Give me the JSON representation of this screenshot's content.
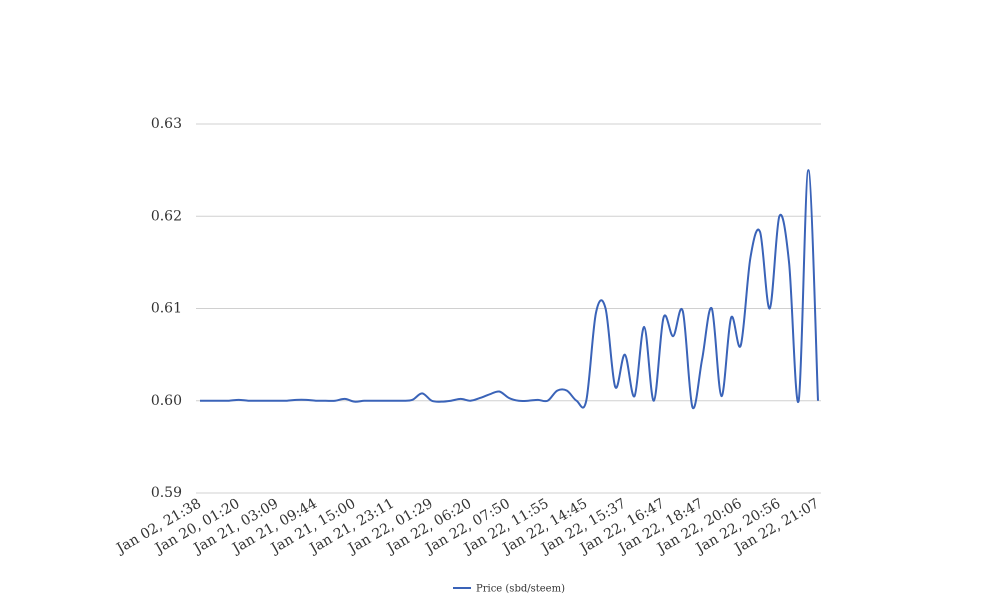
{
  "chart_data": {
    "type": "line",
    "categories": [
      "Jan 02, 21:38",
      null,
      null,
      null,
      "Jan 20, 01:20",
      null,
      null,
      null,
      "Jan 21, 03:09",
      null,
      null,
      null,
      "Jan 21, 09:44",
      null,
      null,
      null,
      "Jan 21, 15:00",
      null,
      null,
      null,
      "Jan 21, 23:11",
      null,
      null,
      null,
      "Jan 22, 01:29",
      null,
      null,
      null,
      "Jan 22, 06:20",
      null,
      null,
      null,
      "Jan 22, 07:50",
      null,
      null,
      null,
      "Jan 22, 11:55",
      null,
      null,
      null,
      "Jan 22, 14:45",
      null,
      null,
      null,
      "Jan 22, 15:37",
      null,
      null,
      null,
      "Jan 22, 16:47",
      null,
      null,
      null,
      "Jan 22, 18:47",
      null,
      null,
      null,
      "Jan 22, 20:06",
      null,
      null,
      null,
      "Jan 22, 20:56",
      null,
      null,
      null,
      "Jan 22, 21:07"
    ],
    "series": [
      {
        "name": "Price (sbd/steem)",
        "color": "#3a63b8",
        "values": [
          0.6,
          0.6,
          0.6,
          0.6,
          0.6001,
          0.6,
          0.6,
          0.6,
          0.6,
          0.6,
          0.6001,
          0.6001,
          0.6,
          0.6,
          0.6,
          0.6002,
          0.5999,
          0.6,
          0.6,
          0.6,
          0.6,
          0.6,
          0.6001,
          0.6008,
          0.6,
          0.5999,
          0.6,
          0.6002,
          0.6,
          0.6003,
          0.6007,
          0.601,
          0.6003,
          0.6,
          0.6,
          0.6001,
          0.6,
          0.6011,
          0.6011,
          0.6,
          0.6,
          0.6095,
          0.61,
          0.6015,
          0.605,
          0.6005,
          0.608,
          0.6,
          0.609,
          0.607,
          0.6097,
          0.5993,
          0.6045,
          0.61,
          0.6005,
          0.609,
          0.606,
          0.6155,
          0.6183,
          0.61,
          0.62,
          0.615,
          0.6,
          0.625,
          0.6
        ]
      }
    ],
    "ylim": [
      0.59,
      0.63
    ],
    "yticks": [
      0.59,
      {
        "value": 0.6,
        "label": "0.60"
      },
      0.61,
      0.62,
      0.63
    ],
    "grid": true,
    "legend": "bottom"
  }
}
